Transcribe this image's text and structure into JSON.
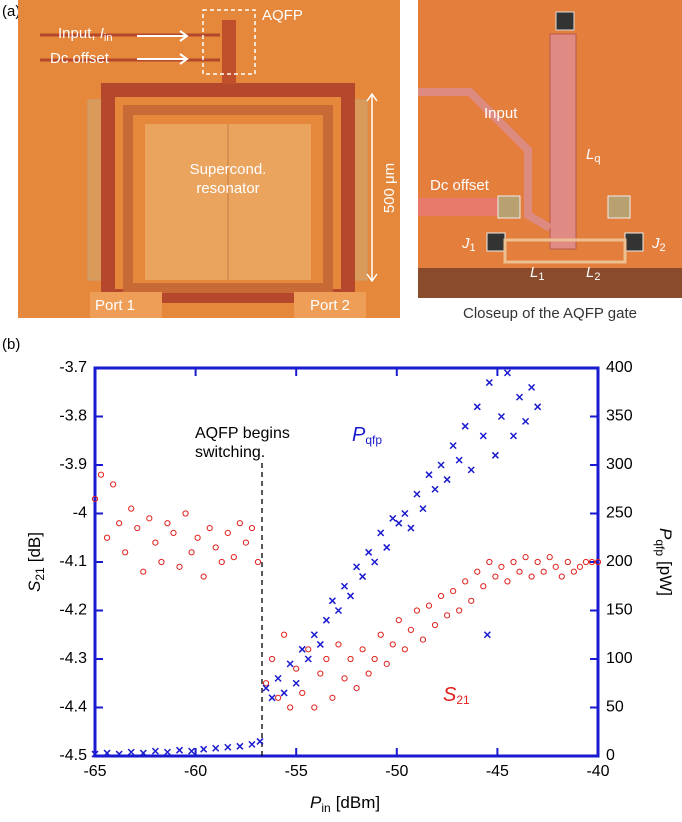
{
  "panel_a": {
    "label": "(a)",
    "left": {
      "input": {
        "text": "Input, ",
        "var": "I",
        "sub": "in"
      },
      "dc_offset": "Dc offset",
      "aqfp": "AQFP",
      "scale": "500 μm",
      "resonator": [
        "Supercond.",
        "resonator"
      ],
      "port1": "Port 1",
      "port2": "Port 2"
    },
    "right": {
      "input": "Input",
      "lq": {
        "var": "L",
        "sub": "q"
      },
      "dc_offset": "Dc offset",
      "j1": {
        "var": "J",
        "sub": "1"
      },
      "j2": {
        "var": "J",
        "sub": "2"
      },
      "l1": {
        "var": "L",
        "sub": "1"
      },
      "l2": {
        "var": "L",
        "sub": "2"
      },
      "caption": "Closeup of the AQFP gate"
    }
  },
  "chart_data": {
    "type": "scatter",
    "panel": "(b)",
    "xlabel": {
      "var": "P",
      "sub": "in",
      "unit": "[dBm]"
    },
    "ylabel": {
      "var": "S",
      "sub": "21",
      "unit": "[dB]"
    },
    "y2label": {
      "var": "P",
      "sub": "qfp",
      "unit": "[pW]"
    },
    "xlim": [
      -65,
      -40
    ],
    "xticks": [
      -65,
      -60,
      -55,
      -50,
      -45,
      -40
    ],
    "ylim": [
      -4.5,
      -3.7
    ],
    "yticks": [
      -4.5,
      -4.4,
      -4.3,
      -4.2,
      -4.1,
      -4,
      -3.9,
      -3.8,
      -3.7
    ],
    "y2lim": [
      0,
      400
    ],
    "y2ticks": [
      0,
      50,
      100,
      150,
      200,
      250,
      300,
      350,
      400
    ],
    "annotation": {
      "lines": [
        "AQFP begins",
        "switching."
      ],
      "x": -56.7
    },
    "series": [
      {
        "name": {
          "var": "S",
          "sub": "21"
        },
        "color": "#e0201c",
        "marker": "circle",
        "x": [
          -65,
          -64.7,
          -64.4,
          -64.1,
          -63.8,
          -63.5,
          -63.2,
          -62.9,
          -62.6,
          -62.3,
          -62,
          -61.7,
          -61.4,
          -61.1,
          -60.8,
          -60.5,
          -60.2,
          -59.9,
          -59.6,
          -59.3,
          -59,
          -58.7,
          -58.4,
          -58.1,
          -57.8,
          -57.5,
          -57.2,
          -56.9,
          -56.5,
          -56.2,
          -55.9,
          -55.6,
          -55.3,
          -55,
          -54.7,
          -54.4,
          -54.1,
          -53.8,
          -53.5,
          -53.2,
          -52.9,
          -52.6,
          -52.3,
          -52,
          -51.7,
          -51.4,
          -51.1,
          -50.8,
          -50.5,
          -50.2,
          -49.9,
          -49.6,
          -49.3,
          -49,
          -48.7,
          -48.4,
          -48.1,
          -47.8,
          -47.5,
          -47.2,
          -46.9,
          -46.6,
          -46.3,
          -46,
          -45.7,
          -45.4,
          -45.1,
          -44.8,
          -44.5,
          -44.2,
          -43.9,
          -43.6,
          -43.3,
          -43,
          -42.7,
          -42.4,
          -42.1,
          -41.8,
          -41.5,
          -41.2,
          -40.9,
          -40.6,
          -40.3,
          -40
        ],
        "y": [
          -3.97,
          -3.92,
          -4.05,
          -3.94,
          -4.02,
          -4.08,
          -3.99,
          -4.03,
          -4.12,
          -4.01,
          -4.06,
          -4.1,
          -4.02,
          -4.04,
          -4.11,
          -4.0,
          -4.08,
          -4.05,
          -4.13,
          -4.03,
          -4.07,
          -4.1,
          -4.04,
          -4.09,
          -4.02,
          -4.06,
          -4.03,
          -4.1,
          -4.35,
          -4.3,
          -4.38,
          -4.25,
          -4.4,
          -4.32,
          -4.37,
          -4.28,
          -4.4,
          -4.33,
          -4.3,
          -4.38,
          -4.27,
          -4.34,
          -4.3,
          -4.36,
          -4.28,
          -4.33,
          -4.3,
          -4.25,
          -4.31,
          -4.27,
          -4.22,
          -4.28,
          -4.24,
          -4.2,
          -4.26,
          -4.19,
          -4.23,
          -4.17,
          -4.21,
          -4.16,
          -4.2,
          -4.14,
          -4.18,
          -4.12,
          -4.15,
          -4.1,
          -4.13,
          -4.11,
          -4.14,
          -4.1,
          -4.12,
          -4.09,
          -4.13,
          -4.1,
          -4.12,
          -4.09,
          -4.11,
          -4.13,
          -4.1,
          -4.12,
          -4.11,
          -4.1,
          -4.1,
          -4.1
        ]
      },
      {
        "name": {
          "var": "P",
          "sub": "qfp"
        },
        "color": "#1a1ad0",
        "marker": "cross",
        "axis": "y2",
        "x": [
          -65,
          -64.4,
          -63.8,
          -63.2,
          -62.6,
          -62,
          -61.4,
          -60.8,
          -60.2,
          -59.6,
          -59,
          -58.4,
          -57.8,
          -57.2,
          -56.8,
          -56.5,
          -56.2,
          -55.9,
          -55.6,
          -55.3,
          -55,
          -54.7,
          -54.4,
          -54.1,
          -53.8,
          -53.5,
          -53.2,
          -52.9,
          -52.6,
          -52.3,
          -52,
          -51.7,
          -51.4,
          -51.1,
          -50.8,
          -50.5,
          -50.2,
          -49.9,
          -49.6,
          -49.3,
          -49,
          -48.7,
          -48.4,
          -48.1,
          -47.8,
          -47.5,
          -47.2,
          -46.9,
          -46.6,
          -46.3,
          -46,
          -45.7,
          -45.4,
          -45.1,
          -44.8,
          -44.5,
          -44.2,
          -43.9,
          -43.6,
          -43.3,
          -43,
          -45.5
        ],
        "y": [
          2,
          3,
          2,
          4,
          3,
          5,
          4,
          6,
          5,
          7,
          8,
          9,
          10,
          12,
          15,
          70,
          60,
          80,
          65,
          95,
          75,
          110,
          100,
          125,
          115,
          140,
          160,
          150,
          175,
          165,
          195,
          185,
          210,
          200,
          230,
          215,
          245,
          240,
          250,
          235,
          270,
          255,
          290,
          275,
          300,
          285,
          320,
          305,
          340,
          295,
          360,
          330,
          385,
          310,
          350,
          395,
          330,
          370,
          345,
          380,
          360,
          125
        ]
      }
    ]
  }
}
